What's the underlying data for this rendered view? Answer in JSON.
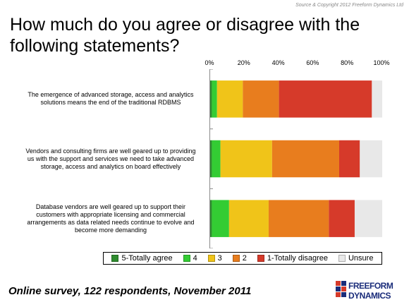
{
  "source": "Source & Copyright 2012 Freeform Dynamics Ltd",
  "footer": "Online survey, 122 respondents, November 2011",
  "logo": {
    "line1": "FREEFORM",
    "line2": "DYNAMICS"
  },
  "chart_data": {
    "type": "bar",
    "orientation": "horizontal",
    "stacked": true,
    "title": "How much do you agree or disagree with the following statements?",
    "categories": [
      "The emergence of advanced storage, access and analytics solutions means the end of the traditional RDBMS",
      "Vendors and consulting firms are well geared up to providing us with the support and services we need to take advanced storage, access and analytics on board effectively",
      "Database vendors are well geared up to support their customers with appropriate licensing and commercial arrangements as data related needs continue to evolve and become more demanding"
    ],
    "xlim": [
      0,
      100
    ],
    "ticks": [
      "0%",
      "20%",
      "40%",
      "60%",
      "80%",
      "100%"
    ],
    "grid": false,
    "legend": "bottom",
    "series": [
      {
        "name": "5-Totally agree",
        "color": "#2e8b2e",
        "values": [
          1,
          1,
          1
        ]
      },
      {
        "name": "4",
        "color": "#33cc33",
        "values": [
          3,
          5,
          10
        ]
      },
      {
        "name": "3",
        "color": "#f0c419",
        "values": [
          15,
          30,
          23
        ]
      },
      {
        "name": "2",
        "color": "#e87d1e",
        "values": [
          21,
          39,
          35
        ]
      },
      {
        "name": "1-Totally disagree",
        "color": "#d63a2a",
        "values": [
          54,
          12,
          15
        ]
      },
      {
        "name": "Unsure",
        "color": "#e8e8e8",
        "values": [
          6,
          13,
          16
        ]
      }
    ]
  }
}
